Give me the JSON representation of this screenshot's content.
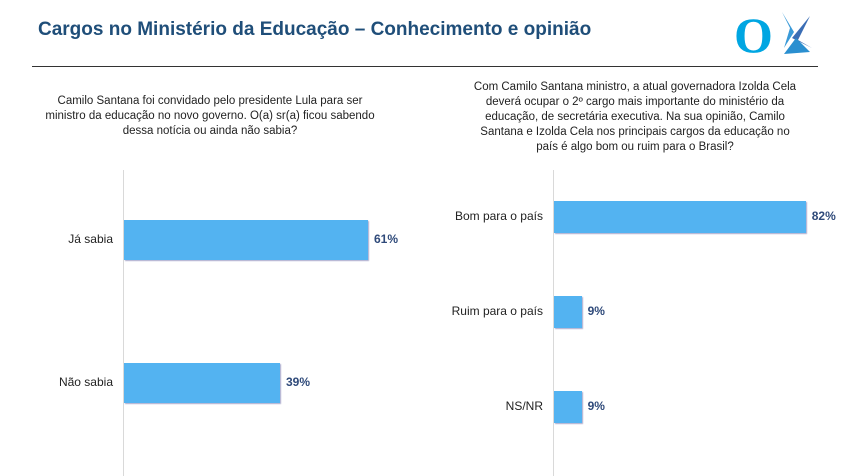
{
  "title": "Cargos no Ministério da Educação – Conhecimento e opinião",
  "logo": {
    "text": "O",
    "colors": [
      "#00a6e2",
      "#3a6db5"
    ]
  },
  "chart_data": [
    {
      "type": "bar",
      "orientation": "horizontal",
      "title": "Camilo Santana foi convidado pelo presidente Lula para ser ministro da educação no novo governo. O(a) sr(a) ficou sabendo dessa notícia ou ainda não sabia?",
      "categories": [
        "Já sabia",
        "Não sabia"
      ],
      "values": [
        61,
        39
      ],
      "labels": [
        "61%",
        "39%"
      ],
      "unit": "%",
      "grid": false,
      "color": "#53b3f1"
    },
    {
      "type": "bar",
      "orientation": "horizontal",
      "title": "Com Camilo Santana ministro, a atual governadora Izolda Cela deverá ocupar o 2º cargo mais importante do ministério da educação, de secretária executiva. Na sua opinião, Camilo Santana e Izolda Cela nos principais cargos da educação no país é algo bom ou ruim para o Brasil?",
      "categories": [
        "Bom para o país",
        "Ruim para o país",
        "NS/NR"
      ],
      "values": [
        82,
        9,
        9
      ],
      "labels": [
        "82%",
        "9%",
        "9%"
      ],
      "unit": "%",
      "grid": false,
      "color": "#53b3f1"
    }
  ]
}
